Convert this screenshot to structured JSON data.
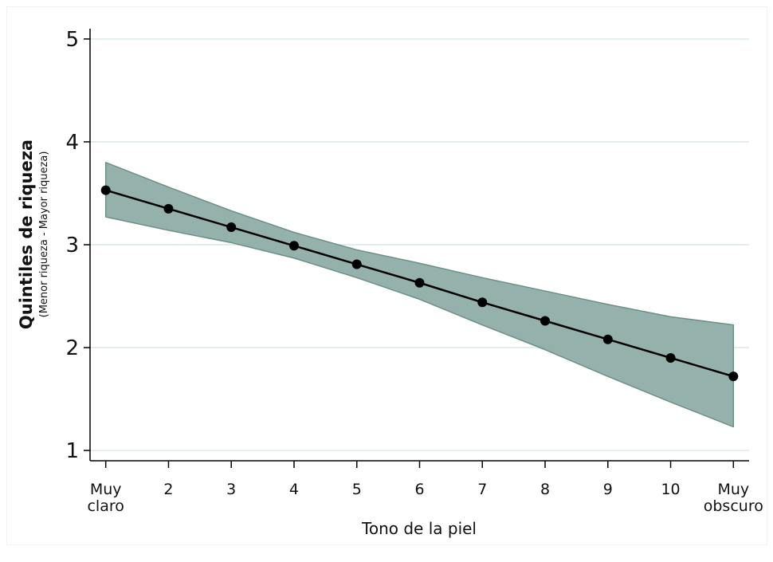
{
  "chart_data": {
    "type": "line",
    "title": "",
    "xlabel": "Tono de la piel",
    "ylabel": "Quintiles de riqueza",
    "ylabel_sub": "(Menor riqueza - Mayor riqueza)",
    "x": [
      1,
      2,
      3,
      4,
      5,
      6,
      7,
      8,
      9,
      10,
      11
    ],
    "x_tick_labels": [
      [
        "Muy",
        "claro"
      ],
      [
        "2"
      ],
      [
        "3"
      ],
      [
        "4"
      ],
      [
        "5"
      ],
      [
        "6"
      ],
      [
        "7"
      ],
      [
        "8"
      ],
      [
        "9"
      ],
      [
        "10"
      ],
      [
        "Muy",
        "obscuro"
      ]
    ],
    "y_ticks": [
      1,
      2,
      3,
      4,
      5
    ],
    "y_tick_labels": [
      "1",
      "2",
      "3",
      "4",
      "5"
    ],
    "ylim": [
      0.9,
      5.1
    ],
    "xlim": [
      0.75,
      11.25
    ],
    "grid": "horizontal",
    "series": [
      {
        "values": [
          3.53,
          3.35,
          3.17,
          2.99,
          2.81,
          2.63,
          2.44,
          2.26,
          2.08,
          1.9,
          1.72
        ],
        "ci_upper": [
          3.8,
          3.56,
          3.33,
          3.12,
          2.95,
          2.82,
          2.68,
          2.55,
          2.42,
          2.3,
          2.22
        ],
        "ci_lower": [
          3.27,
          3.14,
          3.02,
          2.87,
          2.68,
          2.47,
          2.22,
          1.98,
          1.72,
          1.47,
          1.23
        ]
      }
    ],
    "colors": {
      "line": "#000000",
      "marker": "#000000",
      "ci_fill": "#94b2ab",
      "ci_edge": "#6f8e87",
      "grid": "#e4eded",
      "axis": "#000000"
    }
  }
}
